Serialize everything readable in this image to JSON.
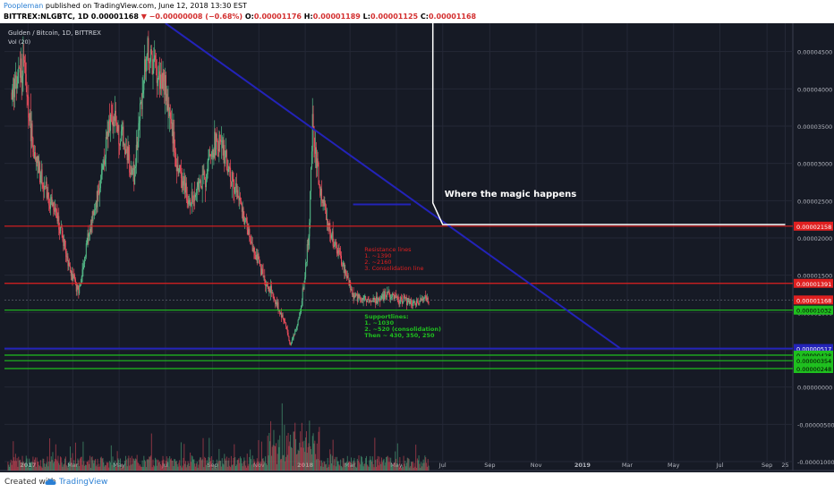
{
  "header": {
    "author": "Poopleman",
    "published": "published on TradingView.com, June 12, 2018 13:30 EST",
    "symbol": "BITTREX:NLGBTC, 1D",
    "last": "0.00001168",
    "change": "▼ −0.00000008 (−0.68%)",
    "open_label": "O:",
    "open": "0.00001176",
    "high_label": "H:",
    "high": "0.00001189",
    "low_label": "L:",
    "low": "0.00001125",
    "close_label": "C:",
    "close": "0.00001168"
  },
  "legend": {
    "title": "Gulden / Bitcoin, 1D, BITTREX",
    "volume": "Vol (20)"
  },
  "footer": {
    "created": "Created with",
    "brand": "TradingView"
  },
  "colors": {
    "background": "#161a25",
    "grid": "#242836",
    "red": "#e02020",
    "green": "#1fbf1f",
    "blue": "#2323b8",
    "white": "#ffffff",
    "candle_up": "#53b987",
    "candle_down": "#eb4d5c"
  },
  "chart_data": {
    "type": "candlestick",
    "title": "Gulden / Bitcoin, 1D, BITTREX",
    "x_labels": [
      "2017",
      "Mar",
      "May",
      "Jul",
      "Sep",
      "Nov",
      "2018",
      "Mar",
      "May",
      "Jul",
      "Sep",
      "Nov",
      "2019",
      "Mar",
      "May",
      "Jul",
      "Sep",
      "25"
    ],
    "y_ticks": [
      -1e-05,
      -5e-06,
      0,
      5e-06,
      1e-05,
      1.5e-05,
      2e-05,
      2.5e-05,
      3e-05,
      3.5e-05,
      4e-05,
      4.5e-05
    ],
    "y_tick_labels": [
      "-0.00001000",
      "-0.00000500",
      "0.00000000",
      "0.00000500",
      "0.00001000",
      "0.00001500",
      "0.00002000",
      "0.00002500",
      "0.00003000",
      "0.00003500",
      "0.00004000",
      "0.00004500"
    ],
    "ylim": [
      -1.12e-05,
      4.88e-05
    ],
    "price_path": [
      [
        "2016-12-10",
        3.95e-05
      ],
      [
        "2016-12-25",
        4.35e-05
      ],
      [
        "2017-01-10",
        3e-05
      ],
      [
        "2017-01-25",
        2.6e-05
      ],
      [
        "2017-02-10",
        2.2e-05
      ],
      [
        "2017-02-25",
        1.6e-05
      ],
      [
        "2017-03-08",
        1.25e-05
      ],
      [
        "2017-03-20",
        2e-05
      ],
      [
        "2017-04-05",
        2.7e-05
      ],
      [
        "2017-04-20",
        3.7e-05
      ],
      [
        "2017-05-05",
        3.3e-05
      ],
      [
        "2017-05-20",
        2.8e-05
      ],
      [
        "2017-06-05",
        4.5e-05
      ],
      [
        "2017-06-15",
        4.3e-05
      ],
      [
        "2017-06-30",
        4e-05
      ],
      [
        "2017-07-15",
        3e-05
      ],
      [
        "2017-08-01",
        2.5e-05
      ],
      [
        "2017-08-20",
        2.8e-05
      ],
      [
        "2017-09-05",
        3.3e-05
      ],
      [
        "2017-09-20",
        3e-05
      ],
      [
        "2017-10-05",
        2.5e-05
      ],
      [
        "2017-10-20",
        2e-05
      ],
      [
        "2017-11-05",
        1.5e-05
      ],
      [
        "2017-11-20",
        1.2e-05
      ],
      [
        "2017-12-05",
        8.5e-06
      ],
      [
        "2017-12-12",
        5.5e-06
      ],
      [
        "2017-12-25",
        1e-05
      ],
      [
        "2018-01-05",
        2e-05
      ],
      [
        "2018-01-10",
        3.5e-05
      ],
      [
        "2018-01-20",
        2.6e-05
      ],
      [
        "2018-02-05",
        2e-05
      ],
      [
        "2018-02-20",
        1.6e-05
      ],
      [
        "2018-03-05",
        1.2e-05
      ],
      [
        "2018-03-20",
        1.18e-05
      ],
      [
        "2018-04-05",
        1.18e-05
      ],
      [
        "2018-04-20",
        1.25e-05
      ],
      [
        "2018-05-05",
        1.18e-05
      ],
      [
        "2018-05-20",
        1.13e-05
      ],
      [
        "2018-06-12",
        1.168e-05
      ]
    ],
    "volume_axis_label": "Vol (20)",
    "lines": [
      {
        "name": "",
        "color": "red",
        "y": 2.158e-05,
        "label": "0.00002158"
      },
      {
        "name": "",
        "color": "red",
        "y": 1.391e-05,
        "label": "0.00001391"
      },
      {
        "name": "",
        "color": "green",
        "y": 1.032e-05,
        "label": "0.00001032"
      },
      {
        "name": "",
        "color": "blue",
        "y": 5.17e-06,
        "label": "0.00000517"
      },
      {
        "name": "",
        "color": "green",
        "y": 4.28e-06,
        "label": "0.00000428"
      },
      {
        "name": "",
        "color": "green",
        "y": 3.54e-06,
        "label": "0.00000354"
      },
      {
        "name": "",
        "color": "green",
        "y": 2.48e-06,
        "label": "0.00000248"
      }
    ],
    "current_price": {
      "y": 1.168e-05,
      "label": "0.00001168"
    },
    "annotations": {
      "magic": "Where the magic happens",
      "resistance": [
        "Resistance lines",
        "1. ~1390",
        "2. ~2160",
        "3. Consolidation line"
      ],
      "support": [
        "Supportlines:",
        "1. ~1030",
        "2. ~520 (consolidation)",
        "Then ~ 430, 350, 250"
      ]
    }
  }
}
